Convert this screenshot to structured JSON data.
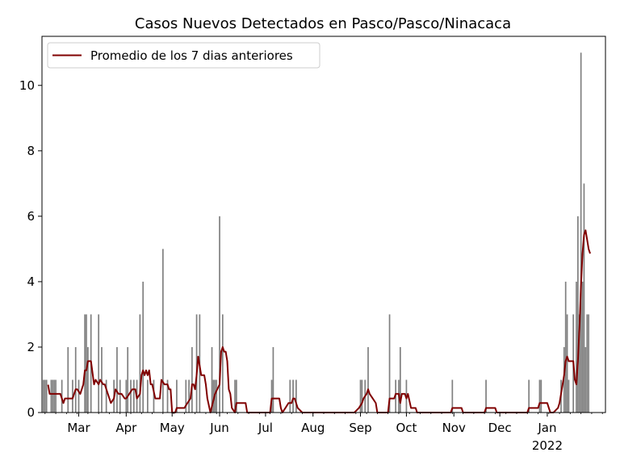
{
  "chart_data": {
    "type": "bar+line",
    "title": "Casos Nuevos Detectados en Pasco/Pasco/Ninacaca",
    "xlabel": "",
    "ylabel": "",
    "ylim": [
      0,
      11.5
    ],
    "yticks": [
      0,
      2,
      4,
      6,
      8,
      10
    ],
    "x_range": [
      0,
      368
    ],
    "month_ticks": [
      {
        "label": "Mar",
        "day": 24
      },
      {
        "label": "Apr",
        "day": 55
      },
      {
        "label": "May",
        "day": 85
      },
      {
        "label": "Jun",
        "day": 116
      },
      {
        "label": "Jul",
        "day": 146
      },
      {
        "label": "Aug",
        "day": 177
      },
      {
        "label": "Sep",
        "day": 208
      },
      {
        "label": "Oct",
        "day": 238
      },
      {
        "label": "Nov",
        "day": 269
      },
      {
        "label": "Dec",
        "day": 299
      },
      {
        "label": "Jan",
        "day": 330
      }
    ],
    "year_label": {
      "text": "2022",
      "day": 330
    },
    "bar_color": "#808080",
    "line_color": "#800000",
    "legend": {
      "entries": [
        "Promedio de los 7 dias anteriores"
      ],
      "placement": "upper-left"
    },
    "grid": false,
    "daily_cases": [
      [
        1,
        1
      ],
      [
        2,
        1
      ],
      [
        3,
        1
      ],
      [
        6,
        1
      ],
      [
        7,
        1
      ],
      [
        8,
        1
      ],
      [
        9,
        1
      ],
      [
        13,
        1
      ],
      [
        17,
        2
      ],
      [
        20,
        1
      ],
      [
        22,
        2
      ],
      [
        24,
        1
      ],
      [
        28,
        3
      ],
      [
        29,
        3
      ],
      [
        30,
        2
      ],
      [
        32,
        3
      ],
      [
        37,
        3
      ],
      [
        39,
        2
      ],
      [
        42,
        1
      ],
      [
        47,
        1
      ],
      [
        49,
        2
      ],
      [
        51,
        1
      ],
      [
        55,
        1
      ],
      [
        56,
        2
      ],
      [
        58,
        1
      ],
      [
        60,
        1
      ],
      [
        62,
        1
      ],
      [
        64,
        3
      ],
      [
        66,
        4
      ],
      [
        69,
        1
      ],
      [
        73,
        1
      ],
      [
        79,
        5
      ],
      [
        82,
        1
      ],
      [
        88,
        1
      ],
      [
        94,
        1
      ],
      [
        96,
        1
      ],
      [
        98,
        2
      ],
      [
        101,
        3
      ],
      [
        103,
        3
      ],
      [
        111,
        2
      ],
      [
        112,
        1
      ],
      [
        113,
        1
      ],
      [
        114,
        1
      ],
      [
        116,
        6
      ],
      [
        118,
        3
      ],
      [
        126,
        1
      ],
      [
        127,
        1
      ],
      [
        150,
        1
      ],
      [
        151,
        2
      ],
      [
        162,
        1
      ],
      [
        164,
        1
      ],
      [
        166,
        1
      ],
      [
        208,
        1
      ],
      [
        209,
        1
      ],
      [
        211,
        1
      ],
      [
        213,
        2
      ],
      [
        227,
        3
      ],
      [
        231,
        1
      ],
      [
        233,
        1
      ],
      [
        234,
        2
      ],
      [
        238,
        1
      ],
      [
        268,
        1
      ],
      [
        290,
        1
      ],
      [
        318,
        1
      ],
      [
        325,
        1
      ],
      [
        326,
        1
      ],
      [
        339,
        1
      ],
      [
        341,
        2
      ],
      [
        342,
        4
      ],
      [
        343,
        3
      ],
      [
        344,
        1
      ],
      [
        347,
        3
      ],
      [
        349,
        4
      ],
      [
        350,
        6
      ],
      [
        351,
        3
      ],
      [
        352,
        11
      ],
      [
        353,
        4
      ],
      [
        354,
        7
      ],
      [
        355,
        2
      ],
      [
        356,
        3
      ],
      [
        357,
        3
      ]
    ],
    "rolling_avg": [
      [
        4,
        0.85
      ],
      [
        5,
        0.57
      ],
      [
        12,
        0.57
      ],
      [
        14,
        0.29
      ],
      [
        15,
        0.43
      ],
      [
        20,
        0.43
      ],
      [
        22,
        0.71
      ],
      [
        23,
        0.71
      ],
      [
        25,
        0.57
      ],
      [
        27,
        0.86
      ],
      [
        28,
        1.29
      ],
      [
        29,
        1.29
      ],
      [
        30,
        1.57
      ],
      [
        32,
        1.57
      ],
      [
        34,
        0.86
      ],
      [
        35,
        1.0
      ],
      [
        37,
        0.86
      ],
      [
        38,
        1.0
      ],
      [
        40,
        0.86
      ],
      [
        41,
        0.86
      ],
      [
        45,
        0.29
      ],
      [
        47,
        0.43
      ],
      [
        48,
        0.71
      ],
      [
        50,
        0.57
      ],
      [
        52,
        0.57
      ],
      [
        54,
        0.43
      ],
      [
        55,
        0.43
      ],
      [
        57,
        0.57
      ],
      [
        59,
        0.71
      ],
      [
        61,
        0.71
      ],
      [
        62,
        0.43
      ],
      [
        64,
        0.57
      ],
      [
        65,
        1.14
      ],
      [
        66,
        1.29
      ],
      [
        67,
        1.14
      ],
      [
        68,
        1.29
      ],
      [
        69,
        1.14
      ],
      [
        70,
        1.29
      ],
      [
        71,
        0.86
      ],
      [
        72,
        0.86
      ],
      [
        74,
        0.43
      ],
      [
        77,
        0.43
      ],
      [
        78,
        1.0
      ],
      [
        80,
        0.86
      ],
      [
        82,
        0.86
      ],
      [
        83,
        0.71
      ],
      [
        84,
        0.71
      ],
      [
        85,
        0.0
      ],
      [
        87,
        0.0
      ],
      [
        88,
        0.14
      ],
      [
        93,
        0.14
      ],
      [
        95,
        0.29
      ],
      [
        97,
        0.43
      ],
      [
        98,
        0.86
      ],
      [
        99,
        0.86
      ],
      [
        100,
        0.71
      ],
      [
        101,
        1.14
      ],
      [
        102,
        1.71
      ],
      [
        104,
        1.14
      ],
      [
        106,
        1.14
      ],
      [
        107,
        0.86
      ],
      [
        108,
        0.43
      ],
      [
        110,
        0.0
      ],
      [
        113,
        0.57
      ],
      [
        116,
        0.86
      ],
      [
        117,
        1.86
      ],
      [
        118,
        2.0
      ],
      [
        119,
        1.86
      ],
      [
        120,
        1.86
      ],
      [
        121,
        1.57
      ],
      [
        122,
        0.71
      ],
      [
        123,
        0.57
      ],
      [
        124,
        0.14
      ],
      [
        126,
        0.0
      ],
      [
        127,
        0.29
      ],
      [
        128,
        0.29
      ],
      [
        133,
        0.29
      ],
      [
        134,
        0.0
      ],
      [
        149,
        0.0
      ],
      [
        150,
        0.43
      ],
      [
        153,
        0.43
      ],
      [
        155,
        0.43
      ],
      [
        156,
        0.14
      ],
      [
        157,
        0.0
      ],
      [
        159,
        0.14
      ],
      [
        161,
        0.29
      ],
      [
        163,
        0.29
      ],
      [
        164,
        0.43
      ],
      [
        165,
        0.43
      ],
      [
        167,
        0.14
      ],
      [
        170,
        0.0
      ],
      [
        204,
        0.0
      ],
      [
        207,
        0.14
      ],
      [
        209,
        0.29
      ],
      [
        210,
        0.43
      ],
      [
        212,
        0.57
      ],
      [
        213,
        0.71
      ],
      [
        214,
        0.57
      ],
      [
        216,
        0.43
      ],
      [
        218,
        0.29
      ],
      [
        219,
        0.0
      ],
      [
        226,
        0.0
      ],
      [
        227,
        0.43
      ],
      [
        230,
        0.43
      ],
      [
        231,
        0.57
      ],
      [
        233,
        0.57
      ],
      [
        234,
        0.29
      ],
      [
        235,
        0.57
      ],
      [
        237,
        0.57
      ],
      [
        238,
        0.43
      ],
      [
        239,
        0.57
      ],
      [
        241,
        0.14
      ],
      [
        244,
        0.14
      ],
      [
        245,
        0.0
      ],
      [
        267,
        0.0
      ],
      [
        268,
        0.14
      ],
      [
        274,
        0.14
      ],
      [
        275,
        0.0
      ],
      [
        289,
        0.0
      ],
      [
        290,
        0.14
      ],
      [
        296,
        0.14
      ],
      [
        297,
        0.0
      ],
      [
        317,
        0.0
      ],
      [
        318,
        0.14
      ],
      [
        324,
        0.14
      ],
      [
        325,
        0.29
      ],
      [
        330,
        0.29
      ],
      [
        331,
        0.14
      ],
      [
        332,
        0.0
      ],
      [
        334,
        0.0
      ],
      [
        337,
        0.14
      ],
      [
        338,
        0.29
      ],
      [
        341,
        1.14
      ],
      [
        342,
        1.57
      ],
      [
        343,
        1.71
      ],
      [
        344,
        1.57
      ],
      [
        347,
        1.57
      ],
      [
        348,
        1.0
      ],
      [
        349,
        0.86
      ],
      [
        350,
        1.57
      ],
      [
        351,
        2.57
      ],
      [
        352,
        3.86
      ],
      [
        353,
        4.86
      ],
      [
        354,
        5.43
      ],
      [
        355,
        5.57
      ],
      [
        356,
        5.29
      ],
      [
        357,
        5.0
      ],
      [
        358,
        4.86
      ]
    ]
  }
}
